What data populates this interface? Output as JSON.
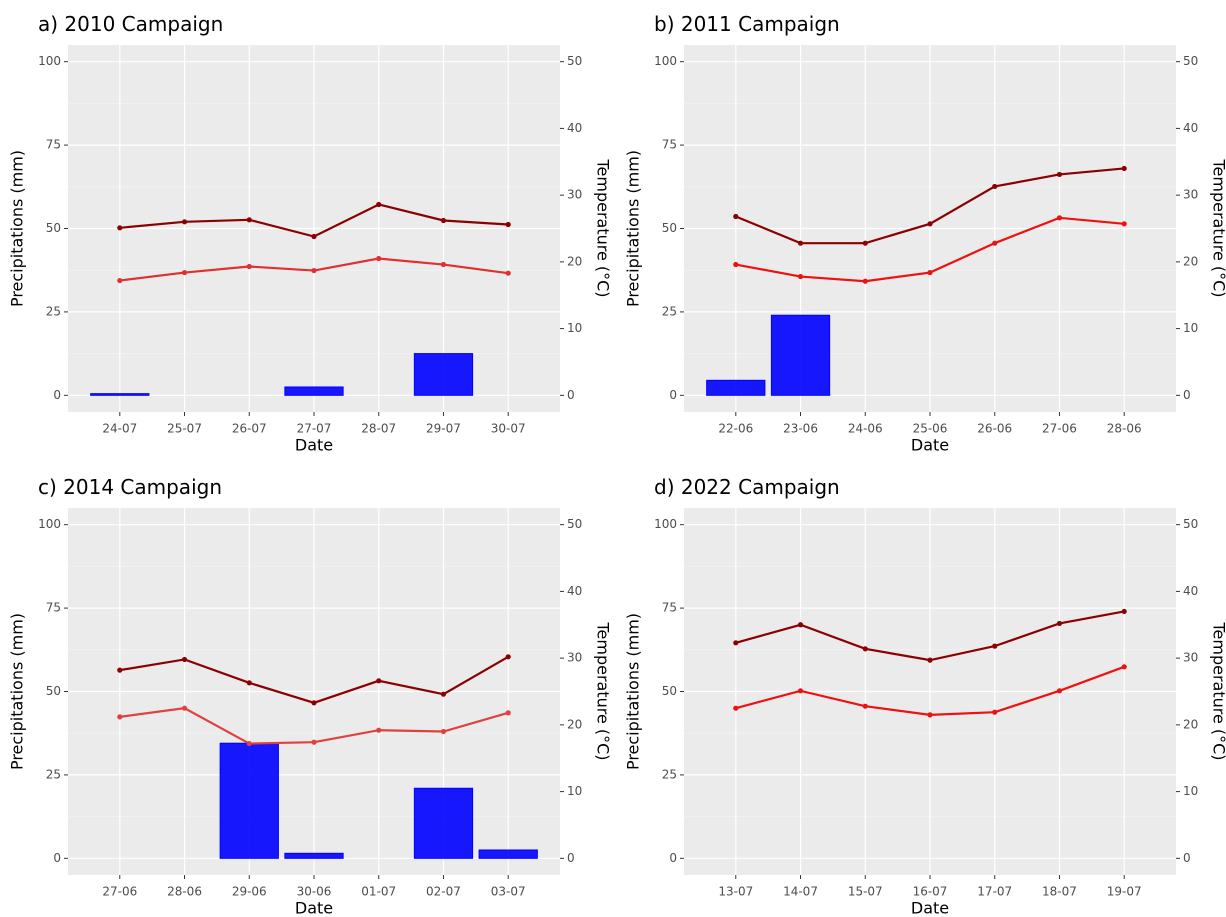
{
  "chart_data": [
    {
      "type": "bar",
      "title": "a) 2010 Campaign",
      "xlabel": "Date",
      "ylabel": "Precipitations (mm)",
      "y2label": "Temperature (°C)",
      "categories": [
        "24-07",
        "25-07",
        "26-07",
        "27-07",
        "28-07",
        "29-07",
        "30-07"
      ],
      "ylim": [
        -5,
        105
      ],
      "yticks": [
        0,
        25,
        50,
        75,
        100
      ],
      "y2lim": [
        -2.5,
        52.5
      ],
      "y2ticks": [
        0,
        10,
        20,
        30,
        40,
        50
      ],
      "grid": true,
      "series": [
        {
          "type": "bar",
          "color": "#0000ff",
          "values": [
            0.5,
            0,
            0,
            2.5,
            0,
            12.5,
            0
          ]
        },
        {
          "type": "line",
          "axis": "y2",
          "color": "#8b0000",
          "values": [
            25.1,
            26.0,
            26.3,
            23.8,
            28.6,
            26.2,
            25.6
          ]
        },
        {
          "type": "line",
          "axis": "y2",
          "color": "#e03030",
          "values": [
            17.2,
            18.4,
            19.3,
            18.7,
            20.5,
            19.6,
            18.3
          ]
        }
      ]
    },
    {
      "type": "bar",
      "title": "b) 2011 Campaign",
      "xlabel": "Date",
      "ylabel": "Precipitations (mm)",
      "y2label": "Temperature (°C)",
      "categories": [
        "22-06",
        "23-06",
        "24-06",
        "25-06",
        "26-06",
        "27-06",
        "28-06"
      ],
      "ylim": [
        -5,
        105
      ],
      "yticks": [
        0,
        25,
        50,
        75,
        100
      ],
      "y2lim": [
        -2.5,
        52.5
      ],
      "y2ticks": [
        0,
        10,
        20,
        30,
        40,
        50
      ],
      "grid": true,
      "series": [
        {
          "type": "bar",
          "color": "#0000ff",
          "values": [
            4.5,
            24,
            0,
            0,
            0,
            0,
            0
          ]
        },
        {
          "type": "line",
          "axis": "y2",
          "color": "#8b0000",
          "values": [
            26.8,
            22.8,
            22.8,
            25.7,
            31.3,
            33.1,
            34.0
          ]
        },
        {
          "type": "line",
          "axis": "y2",
          "color": "#ee1111",
          "values": [
            19.6,
            17.8,
            17.1,
            18.4,
            22.8,
            26.6,
            25.7
          ]
        }
      ]
    },
    {
      "type": "bar",
      "title": "c) 2014 Campaign",
      "xlabel": "Date",
      "ylabel": "Precipitations (mm)",
      "y2label": "Temperature (°C)",
      "categories": [
        "27-06",
        "28-06",
        "29-06",
        "30-06",
        "01-07",
        "02-07",
        "03-07"
      ],
      "ylim": [
        -5,
        105
      ],
      "yticks": [
        0,
        25,
        50,
        75,
        100
      ],
      "y2lim": [
        -2.5,
        52.5
      ],
      "y2ticks": [
        0,
        10,
        20,
        30,
        40,
        50
      ],
      "grid": true,
      "series": [
        {
          "type": "bar",
          "color": "#0000ff",
          "values": [
            0,
            0,
            34.5,
            1.5,
            0,
            21,
            2.5
          ]
        },
        {
          "type": "line",
          "axis": "y2",
          "color": "#8b0000",
          "values": [
            28.2,
            29.8,
            26.3,
            23.3,
            26.6,
            24.6,
            30.2
          ]
        },
        {
          "type": "line",
          "axis": "y2",
          "color": "#e04040",
          "values": [
            21.2,
            22.5,
            17.2,
            17.4,
            19.2,
            19.0,
            21.8
          ]
        }
      ]
    },
    {
      "type": "bar",
      "title": "d) 2022 Campaign",
      "xlabel": "Date",
      "ylabel": "Precipitations (mm)",
      "y2label": "Temperature (°C)",
      "categories": [
        "13-07",
        "14-07",
        "15-07",
        "16-07",
        "17-07",
        "18-07",
        "19-07"
      ],
      "ylim": [
        -5,
        105
      ],
      "yticks": [
        0,
        25,
        50,
        75,
        100
      ],
      "y2lim": [
        -2.5,
        52.5
      ],
      "y2ticks": [
        0,
        10,
        20,
        30,
        40,
        50
      ],
      "grid": true,
      "series": [
        {
          "type": "bar",
          "color": "#0000ff",
          "values": [
            0,
            0,
            0,
            0,
            0,
            0,
            0
          ]
        },
        {
          "type": "line",
          "axis": "y2",
          "color": "#8b0000",
          "values": [
            32.3,
            35.0,
            31.4,
            29.7,
            31.8,
            35.2,
            37.0
          ]
        },
        {
          "type": "line",
          "axis": "y2",
          "color": "#ee1111",
          "values": [
            22.5,
            25.1,
            22.8,
            21.5,
            21.9,
            25.1,
            28.7
          ]
        }
      ]
    }
  ]
}
